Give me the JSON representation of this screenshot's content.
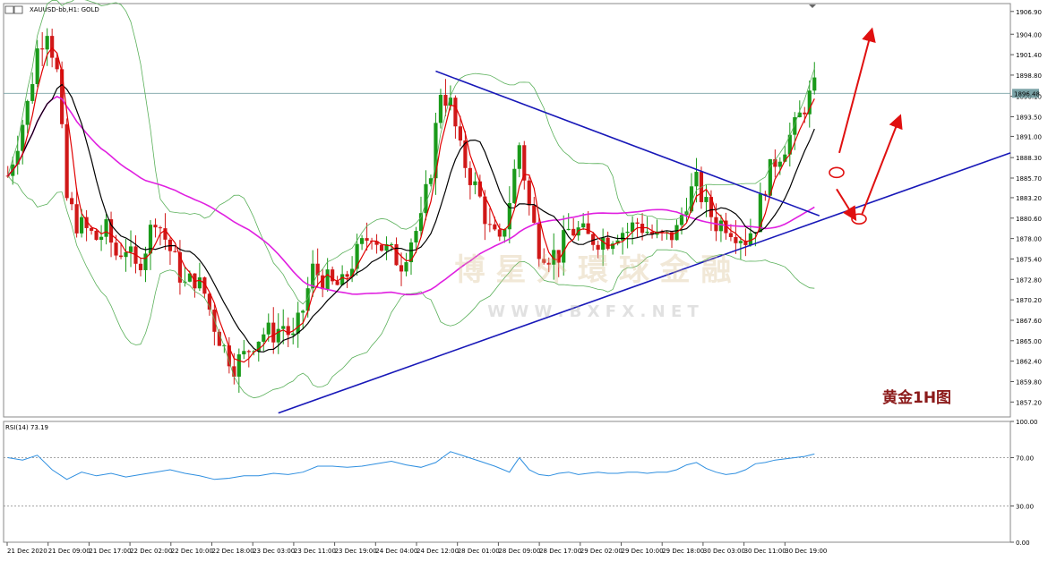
{
  "window": {
    "title": "XAUUSD-bb,H1:  GOLD",
    "rsi_label": "RSI(14) 73.19"
  },
  "watermark": {
    "cn": "博 星 外 環 球 金 融",
    "url": "W W W . B X F X . N E T"
  },
  "annotation": {
    "text": "黄金1H图"
  },
  "current_price_label": "1896.48",
  "colors": {
    "bull": "#1a9a1a",
    "bear": "#d01818",
    "ma_fast": "#e00000",
    "ma_slow": "#000000",
    "ma_long": "#e020e0",
    "bands": "#5ab05a",
    "trend": "#1818b8",
    "arrows": "#e01010",
    "rsi": "#2f8fe0"
  },
  "chart_data": {
    "type": "candlestick",
    "symbol": "XAUUSD-bb",
    "timeframe": "H1",
    "price_axis": {
      "ticks": [
        "1906.90",
        "1904.00",
        "1901.40",
        "1898.80",
        "1896.10",
        "1893.50",
        "1891.00",
        "1888.30",
        "1885.70",
        "1883.20",
        "1880.60",
        "1878.00",
        "1875.40",
        "1872.80",
        "1870.20",
        "1867.60",
        "1865.00",
        "1862.40",
        "1859.80",
        "1857.20"
      ],
      "range": [
        1855.3,
        1907.9
      ]
    },
    "time_axis": {
      "ticks": [
        "21 Dec 2020",
        "21 Dec 09:00",
        "21 Dec 17:00",
        "22 Dec 02:00",
        "22 Dec 10:00",
        "22 Dec 18:00",
        "23 Dec 03:00",
        "23 Dec 11:00",
        "23 Dec 19:00",
        "24 Dec 04:00",
        "24 Dec 12:00",
        "28 Dec 01:00",
        "28 Dec 09:00",
        "28 Dec 17:00",
        "29 Dec 02:00",
        "29 Dec 10:00",
        "29 Dec 18:00",
        "30 Dec 03:00",
        "30 Dec 11:00",
        "30 Dec 19:00"
      ]
    },
    "rsi_axis": {
      "ticks": [
        "100.00",
        "70.00",
        "30.00",
        "0.00"
      ],
      "levels": [
        70,
        30
      ]
    },
    "path_points": [
      [
        1886,
        0
      ],
      [
        1895,
        4
      ],
      [
        1902,
        6
      ],
      [
        1905,
        8
      ],
      [
        1899,
        10
      ],
      [
        1883,
        12
      ],
      [
        1880,
        14
      ],
      [
        1879,
        16
      ],
      [
        1878,
        18
      ],
      [
        1879,
        20
      ],
      [
        1876,
        22
      ],
      [
        1877,
        24
      ],
      [
        1874,
        26
      ],
      [
        1877,
        28
      ],
      [
        1881,
        30
      ],
      [
        1878,
        32
      ],
      [
        1875,
        34
      ],
      [
        1872,
        36
      ],
      [
        1873,
        38
      ],
      [
        1871,
        40
      ],
      [
        1867,
        42
      ],
      [
        1864,
        44
      ],
      [
        1862,
        46
      ],
      [
        1863,
        48
      ],
      [
        1865,
        50
      ],
      [
        1866,
        52
      ],
      [
        1866,
        54
      ],
      [
        1867,
        56
      ],
      [
        1865,
        58
      ],
      [
        1869,
        60
      ],
      [
        1874,
        62
      ],
      [
        1873,
        64
      ],
      [
        1872,
        66
      ],
      [
        1872,
        68
      ],
      [
        1875,
        70
      ],
      [
        1877,
        72
      ],
      [
        1879,
        74
      ],
      [
        1877,
        76
      ],
      [
        1876,
        78
      ],
      [
        1875,
        80
      ],
      [
        1878,
        82
      ],
      [
        1880,
        84
      ],
      [
        1887,
        86
      ],
      [
        1897,
        88
      ],
      [
        1895,
        90
      ],
      [
        1889,
        92
      ],
      [
        1886,
        94
      ],
      [
        1883,
        96
      ],
      [
        1879,
        98
      ],
      [
        1877,
        100
      ],
      [
        1883,
        102
      ],
      [
        1890,
        104
      ],
      [
        1882,
        106
      ],
      [
        1877,
        108
      ],
      [
        1876,
        110
      ],
      [
        1876,
        112
      ],
      [
        1879,
        114
      ],
      [
        1879,
        116
      ],
      [
        1878,
        118
      ],
      [
        1878,
        120
      ],
      [
        1878,
        122
      ],
      [
        1879,
        124
      ],
      [
        1879,
        126
      ],
      [
        1880,
        128
      ],
      [
        1879,
        130
      ],
      [
        1878,
        132
      ],
      [
        1878,
        134
      ],
      [
        1879,
        136
      ],
      [
        1883,
        138
      ],
      [
        1885,
        140
      ],
      [
        1882,
        142
      ],
      [
        1880,
        144
      ],
      [
        1880,
        146
      ],
      [
        1879,
        148
      ],
      [
        1878,
        150
      ],
      [
        1880,
        152
      ],
      [
        1885,
        154
      ],
      [
        1888,
        156
      ],
      [
        1890,
        158
      ],
      [
        1892,
        160
      ],
      [
        1895,
        162
      ],
      [
        1897,
        164
      ],
      [
        1896,
        165
      ]
    ],
    "rsi_path": [
      [
        70,
        0
      ],
      [
        68,
        3
      ],
      [
        72,
        6
      ],
      [
        60,
        9
      ],
      [
        52,
        12
      ],
      [
        58,
        15
      ],
      [
        55,
        18
      ],
      [
        57,
        21
      ],
      [
        54,
        24
      ],
      [
        56,
        27
      ],
      [
        58,
        30
      ],
      [
        60,
        33
      ],
      [
        57,
        36
      ],
      [
        55,
        39
      ],
      [
        52,
        42
      ],
      [
        53,
        45
      ],
      [
        55,
        48
      ],
      [
        55,
        51
      ],
      [
        57,
        54
      ],
      [
        56,
        57
      ],
      [
        58,
        60
      ],
      [
        63,
        63
      ],
      [
        63,
        66
      ],
      [
        62,
        69
      ],
      [
        63,
        72
      ],
      [
        65,
        75
      ],
      [
        67,
        78
      ],
      [
        64,
        81
      ],
      [
        62,
        84
      ],
      [
        66,
        87
      ],
      [
        75,
        90
      ],
      [
        71,
        93
      ],
      [
        67,
        96
      ],
      [
        63,
        99
      ],
      [
        58,
        102
      ],
      [
        70,
        104
      ],
      [
        60,
        106
      ],
      [
        56,
        108
      ],
      [
        55,
        110
      ],
      [
        57,
        112
      ],
      [
        58,
        114
      ],
      [
        56,
        116
      ],
      [
        57,
        118
      ],
      [
        58,
        120
      ],
      [
        57,
        122
      ],
      [
        57,
        124
      ],
      [
        58,
        126
      ],
      [
        58,
        128
      ],
      [
        57,
        130
      ],
      [
        58,
        132
      ],
      [
        58,
        134
      ],
      [
        60,
        136
      ],
      [
        64,
        138
      ],
      [
        66,
        140
      ],
      [
        61,
        142
      ],
      [
        58,
        144
      ],
      [
        56,
        146
      ],
      [
        57,
        148
      ],
      [
        60,
        150
      ],
      [
        65,
        152
      ],
      [
        66,
        154
      ],
      [
        68,
        156
      ],
      [
        69,
        158
      ],
      [
        70,
        160
      ],
      [
        71,
        162
      ],
      [
        73,
        164
      ]
    ]
  }
}
